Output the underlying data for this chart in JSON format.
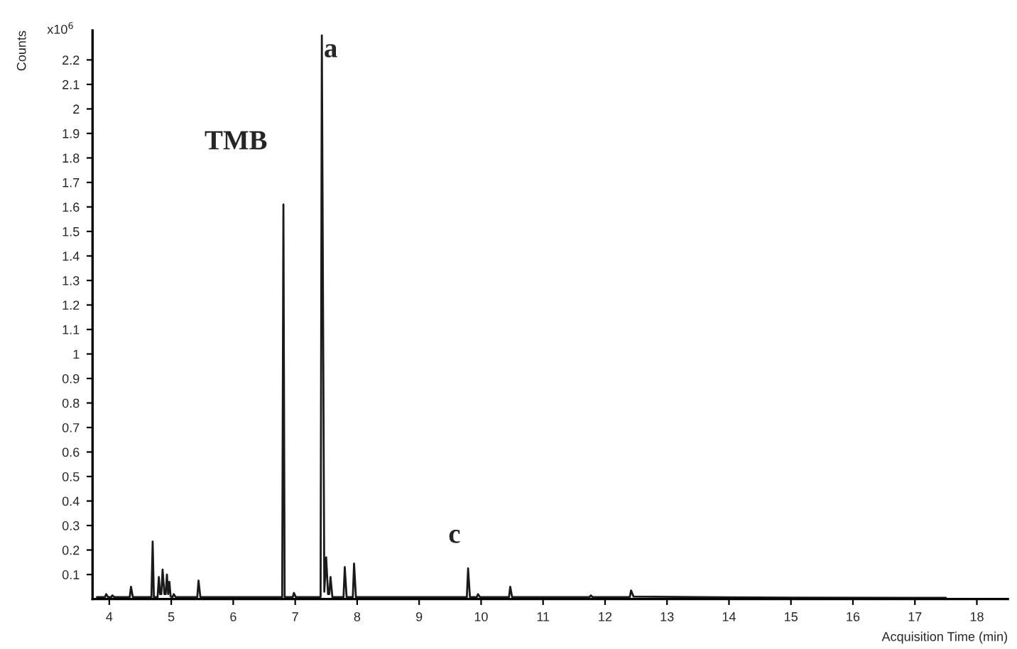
{
  "chart_data": {
    "type": "line",
    "xlabel": "Acquisition Time (min)",
    "ylabel": "Counts",
    "x": [
      3.8,
      3.93,
      3.95,
      3.98,
      4.03,
      4.05,
      4.08,
      4.33,
      4.35,
      4.38,
      4.68,
      4.7,
      4.72,
      4.78,
      4.8,
      4.82,
      4.84,
      4.86,
      4.89,
      4.91,
      4.93,
      4.95,
      4.97,
      4.99,
      5.02,
      5.04,
      5.07,
      5.42,
      5.44,
      5.47,
      6.79,
      6.81,
      6.83,
      6.96,
      6.98,
      7.01,
      7.41,
      7.43,
      7.47,
      7.5,
      7.53,
      7.55,
      7.57,
      7.6,
      7.78,
      7.8,
      7.83,
      7.93,
      7.95,
      7.98,
      9.77,
      9.79,
      9.82,
      9.93,
      9.95,
      9.98,
      10.45,
      10.47,
      10.5,
      11.75,
      11.77,
      11.8,
      12.4,
      12.42,
      12.46,
      13.5,
      15.0,
      17.5
    ],
    "values": [
      0.008,
      0.008,
      0.02,
      0.008,
      0.008,
      0.015,
      0.008,
      0.008,
      0.05,
      0.008,
      0.008,
      0.235,
      0.008,
      0.008,
      0.09,
      0.02,
      0.02,
      0.12,
      0.02,
      0.02,
      0.1,
      0.02,
      0.07,
      0.01,
      0.008,
      0.02,
      0.008,
      0.008,
      0.075,
      0.008,
      0.008,
      1.61,
      0.008,
      0.008,
      0.025,
      0.008,
      0.008,
      2.3,
      0.03,
      0.17,
      0.02,
      0.02,
      0.09,
      0.008,
      0.008,
      0.13,
      0.008,
      0.008,
      0.145,
      0.008,
      0.008,
      0.125,
      0.008,
      0.008,
      0.02,
      0.008,
      0.008,
      0.05,
      0.008,
      0.008,
      0.015,
      0.008,
      0.008,
      0.035,
      0.01,
      0.008,
      0.006,
      0.005
    ],
    "color": "#1a1a1a",
    "xlim": [
      3.73,
      18.5
    ],
    "xticks": [
      4,
      5,
      6,
      7,
      8,
      9,
      10,
      11,
      12,
      13,
      14,
      15,
      16,
      17,
      18
    ],
    "ylim": [
      0,
      2.32
    ],
    "yticks": [
      0.1,
      0.2,
      0.3,
      0.4,
      0.5,
      0.6,
      0.7,
      0.8,
      0.9,
      1,
      1.1,
      1.2,
      1.3,
      1.4,
      1.5,
      1.6,
      1.7,
      1.8,
      1.9,
      2,
      2.1,
      2.2
    ],
    "annotations": [
      "x10$^{6}$",
      {
        "text": "TMB",
        "x": 6.81,
        "y": 1.61
      },
      {
        "text": "a",
        "x": 7.43,
        "y": 2.3
      },
      {
        "text": "c",
        "x": 9.79,
        "y": 0.125
      }
    ],
    "grid": false,
    "marker": "none",
    "line_style": "solid"
  }
}
